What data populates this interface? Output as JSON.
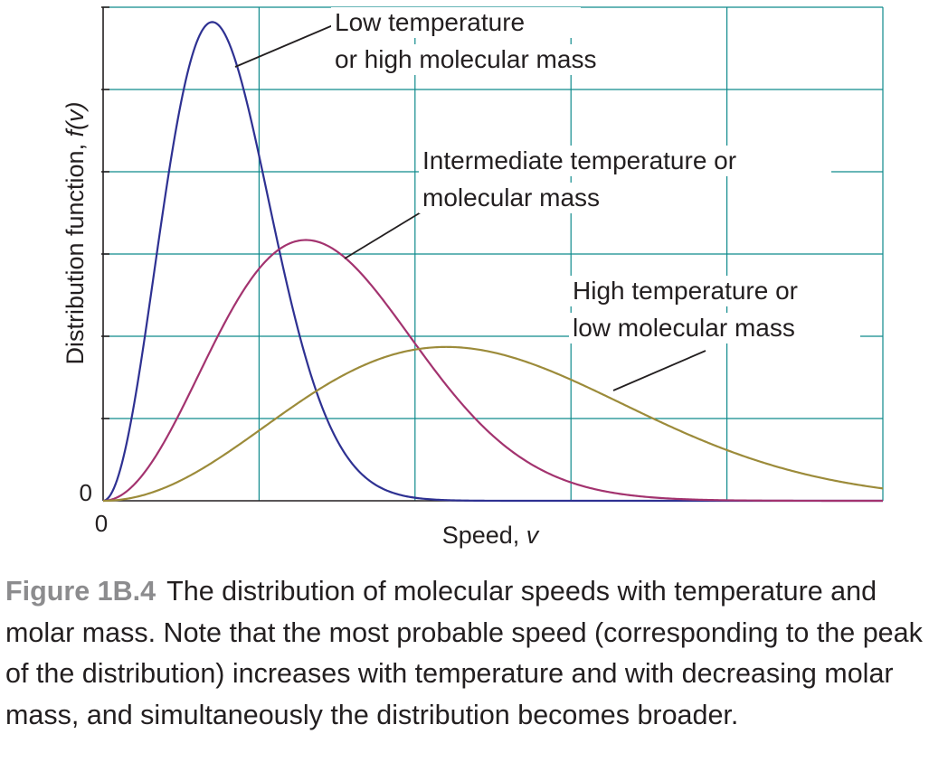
{
  "chart_data": {
    "type": "line",
    "xlabel": "Speed, v",
    "xlabel_text": "Speed, ",
    "xlabel_var": "v",
    "ylabel": "Distribution function, f(v)",
    "ylabel_text": "Distribution function, ",
    "ylabel_var": "f(v)",
    "x_origin_label": "0",
    "y_origin_label": "0",
    "xlim": [
      0,
      5
    ],
    "ylim": [
      0,
      6
    ],
    "grid": true,
    "legend": "none (annotations with leader lines)",
    "series": [
      {
        "key": "low",
        "peak_x": 0.7,
        "peak_y": 5.82,
        "color": "#2e3192"
      },
      {
        "key": "mid",
        "peak_x": 1.3,
        "peak_y": 3.17,
        "color": "#a3336f"
      },
      {
        "key": "high",
        "peak_x": 2.2,
        "peak_y": 1.87,
        "color": "#9c8b3a"
      }
    ],
    "annotations": [
      {
        "series": "low",
        "lines": [
          "Low temperature",
          "or high molecular mass"
        ]
      },
      {
        "series": "mid",
        "lines": [
          "Intermediate temperature or",
          "molecular mass"
        ]
      },
      {
        "series": "high",
        "lines": [
          "High temperature or",
          "low molecular mass"
        ]
      }
    ]
  },
  "caption": {
    "label": "Figure 1B.4",
    "text": "The distribution of molecular speeds with temperature and molar mass. Note that the most probable speed (corresponding to the peak of the distribution) increases with temperature and with decreasing molar mass, and simultaneously the distribution becomes broader."
  },
  "colors": {
    "grid": "#0f8a8c",
    "axis": "#231f20",
    "caption_label": "#8c8c8e"
  }
}
